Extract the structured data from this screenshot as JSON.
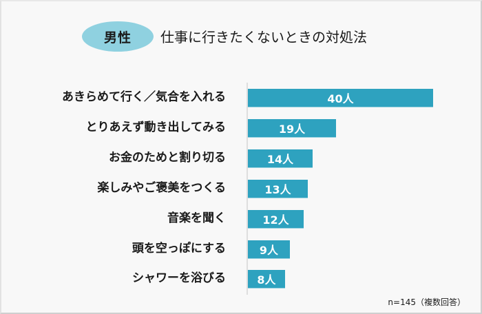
{
  "header": {
    "badge": "男性",
    "title": "仕事に行きたくないときの対処法"
  },
  "footnote": "n=145（複数回答）",
  "colors": {
    "bar": "#2ea2bf",
    "badge": "#8fd1e0",
    "background": "#f8f8f8"
  },
  "chart_data": {
    "type": "bar",
    "orientation": "horizontal",
    "title": "男性 仕事に行きたくないときの対処法",
    "categories": [
      "あきらめて行く／気合を入れる",
      "とりあえず動き出してみる",
      "お金のためと割り切る",
      "楽しみやご褒美をつくる",
      "音楽を聞く",
      "頭を空っぽにする",
      "シャワーを浴びる"
    ],
    "values": [
      40,
      19,
      14,
      13,
      12,
      9,
      8
    ],
    "data_labels": [
      "40人",
      "19人",
      "14人",
      "13人",
      "12人",
      "9人",
      "8人"
    ],
    "unit": "人",
    "xlabel": "",
    "ylabel": "",
    "grid": false,
    "legend": null,
    "annotation": "n=145（複数回答）"
  }
}
